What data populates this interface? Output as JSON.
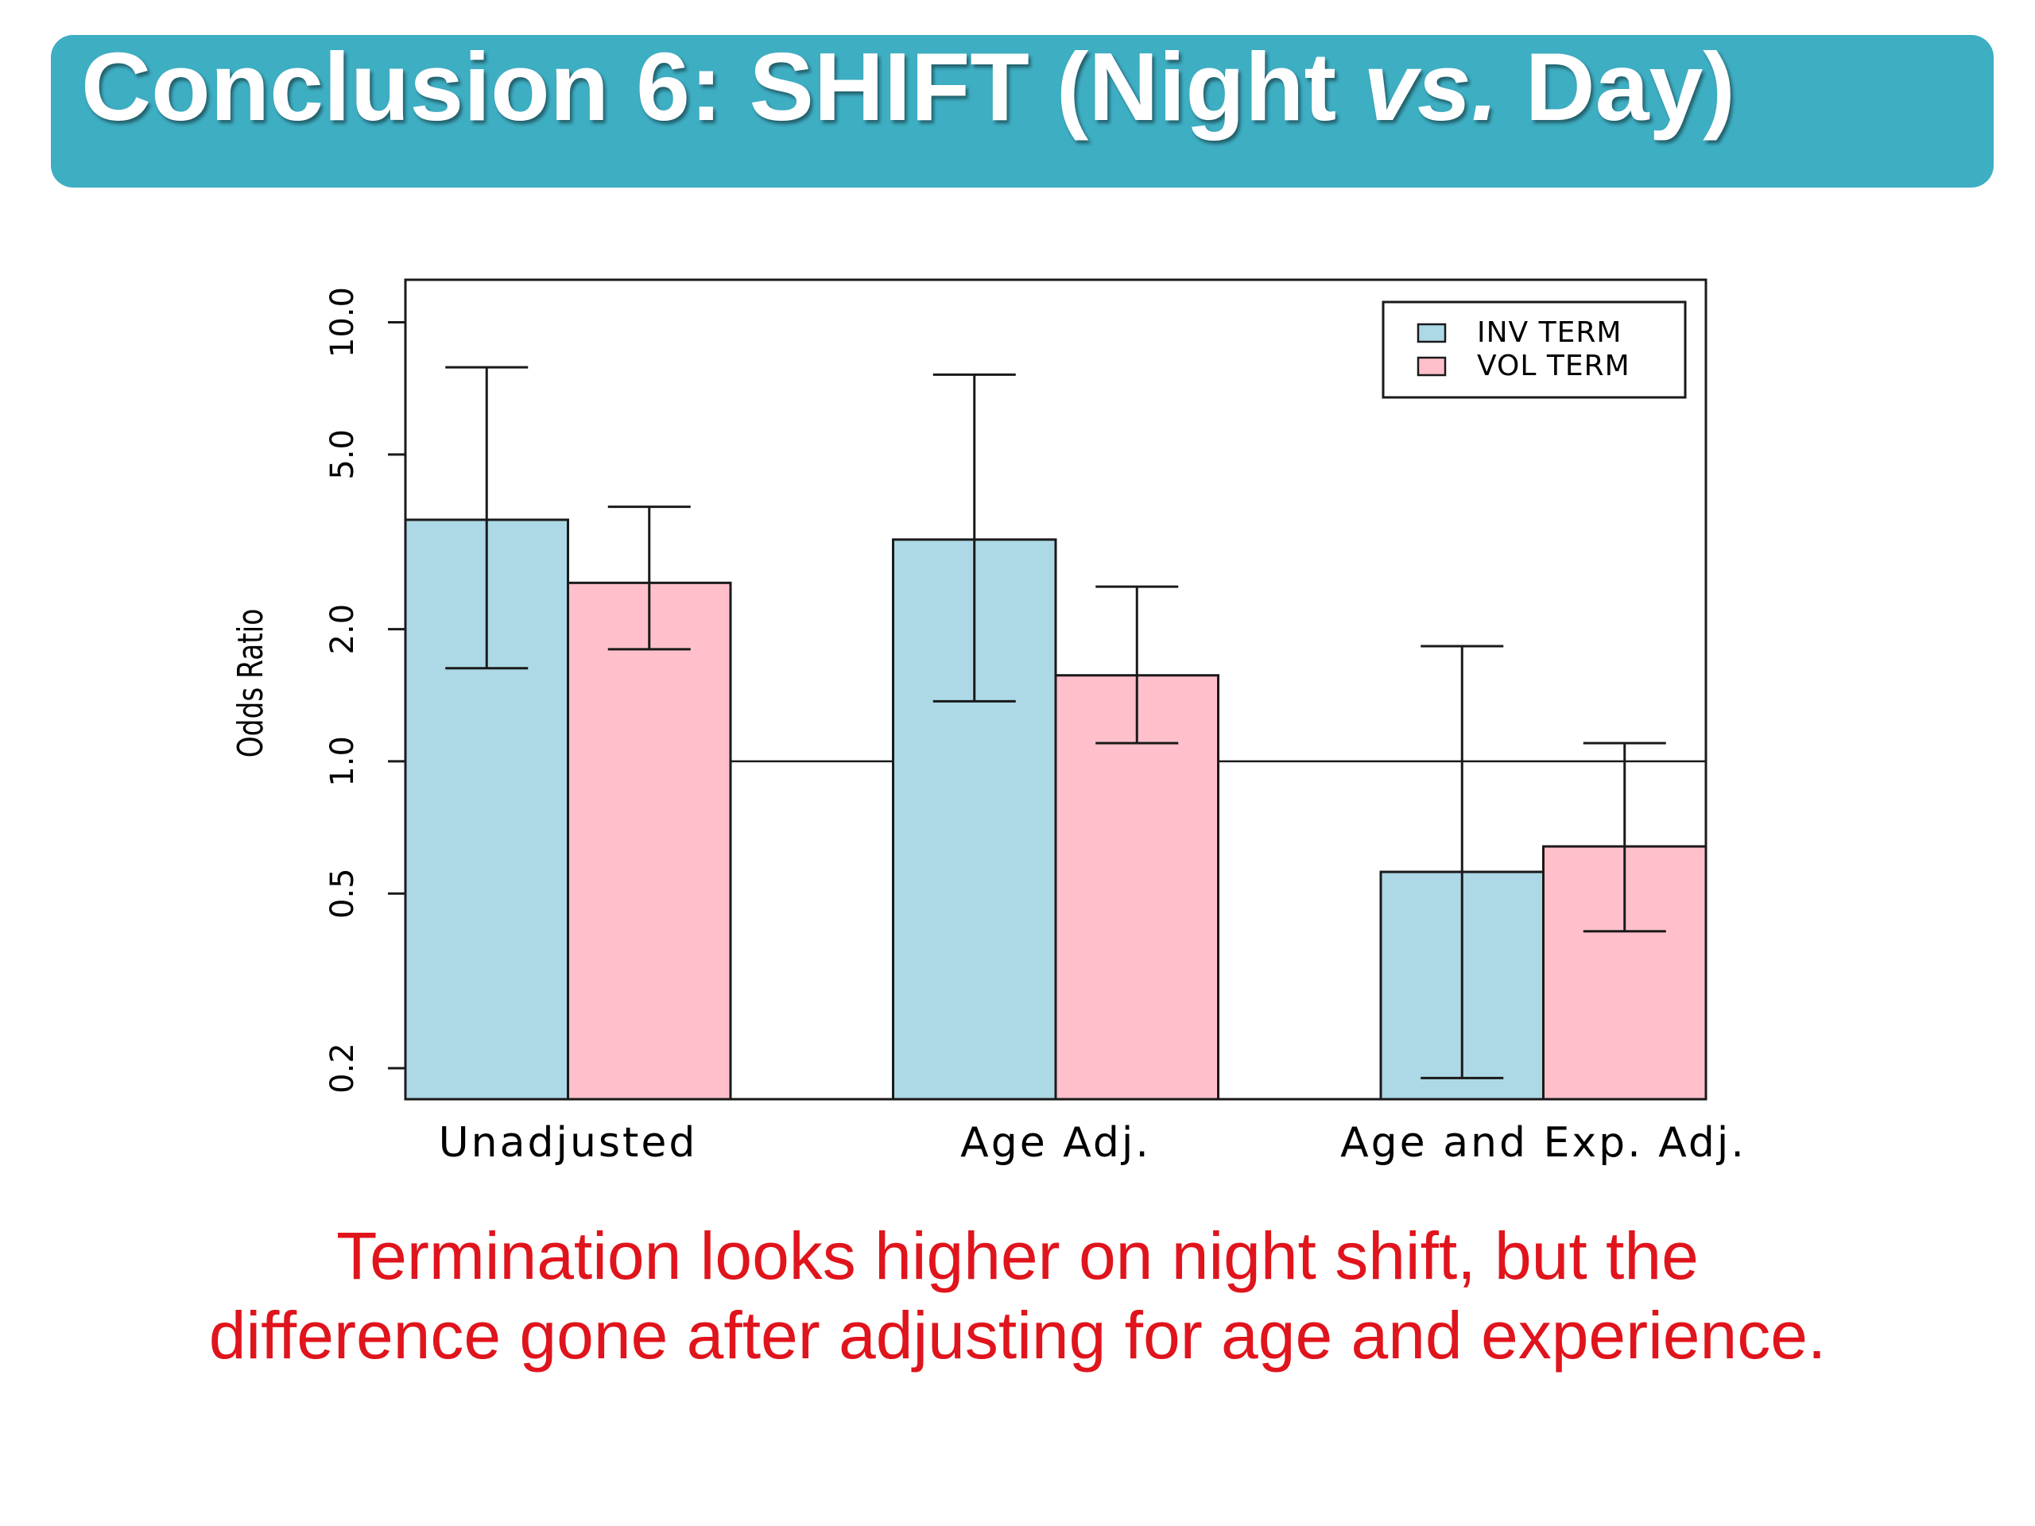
{
  "slide": {
    "title_main": "Conclusion 6: SHIFT (Night ",
    "title_italic": "vs.",
    "title_end": " Day)",
    "caption_line1": "Termination looks higher on night shift, but the",
    "caption_line2": "difference gone after adjusting for age and experience."
  },
  "colors": {
    "title_bar": "#3eaec3",
    "inv_term": "#add8e6",
    "vol_term": "#ffc0cb",
    "caption": "#e0141c"
  },
  "chart_data": {
    "type": "bar",
    "scale": "log",
    "ylabel": "Odds Ratio",
    "ylim": [
      0.17,
      12.5
    ],
    "yticks": [
      0.2,
      0.5,
      1.0,
      2.0,
      5.0,
      10.0
    ],
    "ytick_labels": [
      "0.2",
      "0.5",
      "1.0",
      "2.0",
      "5.0",
      "10.0"
    ],
    "reference_line": 1.0,
    "categories": [
      "Unadjusted",
      "Age Adj.",
      "Age and Exp. Adj."
    ],
    "legend_position": "top-right",
    "series": [
      {
        "name": "INV TERM",
        "color": "#add8e6",
        "values": [
          3.55,
          3.2,
          0.56
        ],
        "ci_low": [
          1.63,
          1.37,
          0.19
        ],
        "ci_high": [
          7.9,
          7.6,
          1.83
        ]
      },
      {
        "name": "VOL TERM",
        "color": "#ffc0cb",
        "values": [
          2.55,
          1.57,
          0.64
        ],
        "ci_low": [
          1.8,
          1.1,
          0.41
        ],
        "ci_high": [
          3.8,
          2.5,
          1.1
        ]
      }
    ]
  }
}
